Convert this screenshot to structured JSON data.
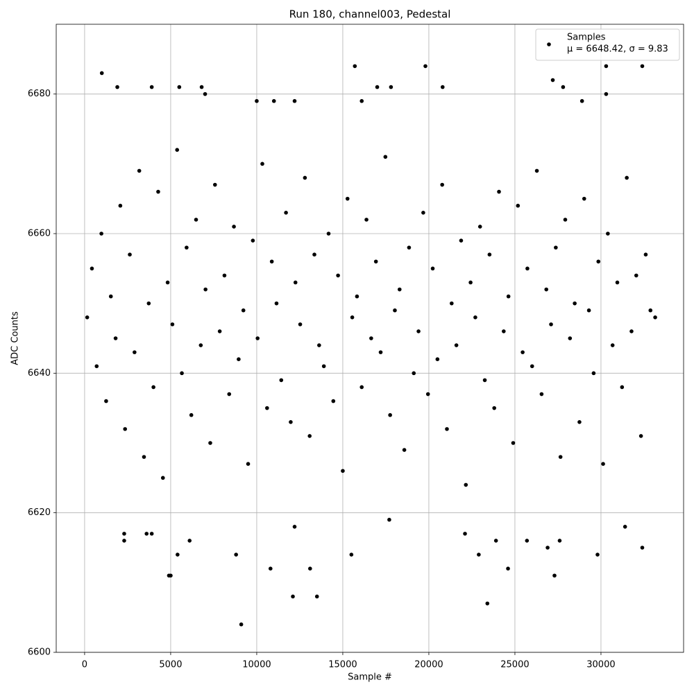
{
  "chart_data": {
    "type": "scatter",
    "title": "Run 180, channel003, Pedestal",
    "x_label": "Sample #",
    "y_label": "ADC Counts",
    "xlim": [
      -1650,
      34800
    ],
    "ylim": [
      6600,
      6690
    ],
    "xticks": [
      0,
      5000,
      10000,
      15000,
      20000,
      25000,
      30000
    ],
    "yticks": [
      6600,
      6620,
      6640,
      6660,
      6680
    ],
    "grid": true,
    "legend": "upper right",
    "legend_note": "μ = 6648.42, σ = 9.83",
    "series": [
      {
        "name": "Samples",
        "color": "#000000",
        "x": [
          150,
          425,
          700,
          975,
          1250,
          1525,
          1800,
          2075,
          2350,
          2625,
          2900,
          3175,
          3450,
          3725,
          4000,
          4275,
          4550,
          4825,
          5100,
          5375,
          5650,
          5925,
          6200,
          6475,
          6750,
          7025,
          7300,
          7575,
          7850,
          8125,
          8400,
          8675,
          8950,
          9225,
          9500,
          9775,
          10050,
          10325,
          10600,
          10875,
          11150,
          11425,
          11700,
          11975,
          12250,
          12525,
          12800,
          13075,
          13350,
          13625,
          13900,
          14175,
          14450,
          14725,
          15000,
          15275,
          15550,
          15825,
          16100,
          16375,
          16650,
          16925,
          17200,
          17475,
          17750,
          18025,
          18300,
          18575,
          18850,
          19125,
          19400,
          19675,
          19950,
          20225,
          20500,
          20775,
          21050,
          21325,
          21600,
          21875,
          22150,
          22425,
          22700,
          22975,
          23250,
          23525,
          23800,
          24075,
          24350,
          24625,
          24900,
          25175,
          25450,
          25725,
          26000,
          26275,
          26550,
          26825,
          27100,
          27375,
          27650,
          27925,
          28200,
          28475,
          28750,
          29025,
          29300,
          29575,
          29850,
          30125,
          30400,
          30675,
          30950,
          31225,
          31500,
          31775,
          32050,
          32325,
          32600,
          32875,
          33150,
          1000,
          1900,
          3900,
          5500,
          6800,
          7000,
          10000,
          11000,
          12200,
          15700,
          16100,
          17000,
          17800,
          19800,
          20800,
          27200,
          27800,
          28900,
          30300,
          30300,
          32400,
          9100,
          23400,
          12100,
          13500,
          4900,
          5000,
          10800,
          13100,
          24600,
          27300,
          8800,
          5400,
          15500,
          22900,
          29800,
          32400,
          26900,
          2300,
          2300,
          6100,
          3600,
          3900,
          12200,
          31400,
          17700,
          22100,
          25700,
          27600,
          23900
        ],
        "values": [
          6648,
          6655,
          6641,
          6660,
          6636,
          6651,
          6645,
          6664,
          6632,
          6657,
          6643,
          6669,
          6628,
          6650,
          6638,
          6666,
          6625,
          6653,
          6647,
          6672,
          6640,
          6658,
          6634,
          6662,
          6644,
          6652,
          6630,
          6667,
          6646,
          6654,
          6637,
          6661,
          6642,
          6649,
          6627,
          6659,
          6645,
          6670,
          6635,
          6656,
          6650,
          6639,
          6663,
          6633,
          6653,
          6647,
          6668,
          6631,
          6657,
          6644,
          6641,
          6660,
          6636,
          6654,
          6626,
          6665,
          6648,
          6651,
          6638,
          6662,
          6645,
          6656,
          6643,
          6671,
          6634,
          6649,
          6652,
          6629,
          6658,
          6640,
          6646,
          6663,
          6637,
          6655,
          6642,
          6667,
          6632,
          6650,
          6644,
          6659,
          6624,
          6653,
          6648,
          6661,
          6639,
          6657,
          6635,
          6666,
          6646,
          6651,
          6630,
          6664,
          6643,
          6655,
          6641,
          6669,
          6637,
          6652,
          6647,
          6658,
          6628,
          6662,
          6645,
          6650,
          6633,
          6665,
          6649,
          6640,
          6656,
          6627,
          6660,
          6644,
          6653,
          6638,
          6668,
          6646,
          6654,
          6631,
          6657,
          6649,
          6648,
          6683,
          6681,
          6681,
          6681,
          6681,
          6680,
          6679,
          6679,
          6679,
          6684,
          6679,
          6681,
          6681,
          6684,
          6681,
          6682,
          6681,
          6679,
          6684,
          6680,
          6684,
          6604,
          6607,
          6608,
          6608,
          6611,
          6611,
          6612,
          6612,
          6612,
          6611,
          6614,
          6614,
          6614,
          6614,
          6614,
          6615,
          6615,
          6616,
          6617,
          6616,
          6617,
          6617,
          6618,
          6618,
          6619,
          6617,
          6616,
          6616,
          6616
        ]
      }
    ]
  }
}
